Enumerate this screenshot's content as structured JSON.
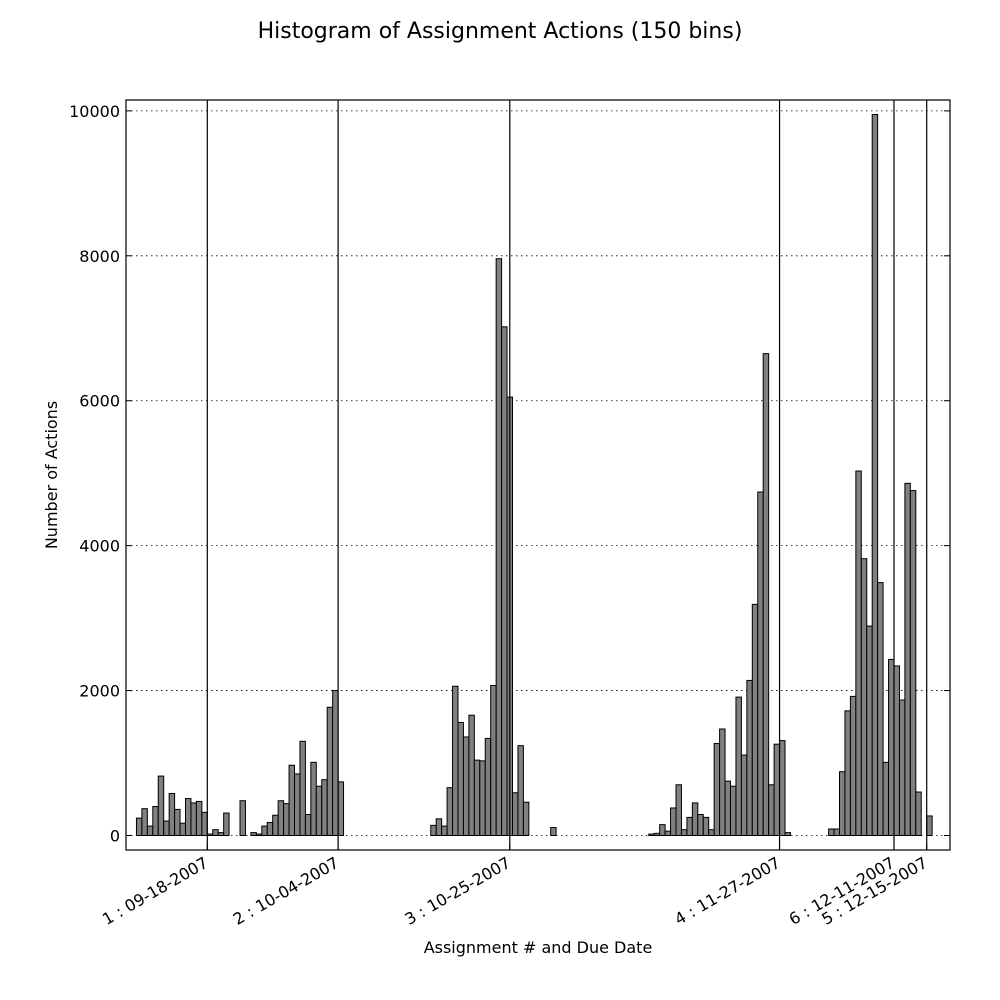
{
  "chart_data": {
    "type": "bar",
    "title": "Histogram of Assignment Actions (150 bins)",
    "xlabel": "Assignment # and Due Date",
    "ylabel": "Number of Actions",
    "ylim": [
      -200,
      10150
    ],
    "yticks": [
      0,
      2000,
      4000,
      6000,
      8000,
      10000
    ],
    "ytick_labels": [
      "0",
      "2000",
      "4000",
      "6000",
      "8000",
      "10000"
    ],
    "grid": "horizontal dotted",
    "bar_color": "#808080",
    "bins": 150,
    "xlim": [
      0,
      150
    ],
    "values": [
      0,
      240,
      370,
      130,
      400,
      820,
      200,
      580,
      360,
      170,
      510,
      450,
      470,
      320,
      20,
      80,
      40,
      310,
      0,
      0,
      480,
      0,
      40,
      20,
      130,
      180,
      280,
      480,
      440,
      970,
      850,
      1300,
      290,
      1010,
      680,
      770,
      1770,
      2000,
      740,
      0,
      0,
      0,
      0,
      0,
      0,
      0,
      0,
      0,
      0,
      0,
      0,
      0,
      0,
      0,
      0,
      140,
      230,
      130,
      660,
      2060,
      1560,
      1360,
      1660,
      1040,
      1030,
      1340,
      2070,
      7960,
      7020,
      6050,
      590,
      1240,
      460,
      0,
      0,
      0,
      0,
      110,
      0,
      0,
      0,
      0,
      0,
      0,
      0,
      0,
      0,
      0,
      0,
      0,
      0,
      0,
      0,
      0,
      0,
      20,
      30,
      150,
      60,
      380,
      700,
      80,
      250,
      450,
      290,
      250,
      80,
      1270,
      1470,
      750,
      680,
      1910,
      1110,
      2140,
      3190,
      4740,
      6650,
      700,
      1260,
      1310,
      40,
      0,
      0,
      0,
      0,
      0,
      0,
      0,
      90,
      90,
      880,
      1720,
      1920,
      5030,
      3820,
      2890,
      9950,
      3490,
      1010,
      2430,
      2340,
      1870,
      4860,
      4760,
      600,
      0,
      270,
      0
    ],
    "due_dates": [
      {
        "label": "1 : 09-18-2007",
        "bin": 14
      },
      {
        "label": "2 : 10-04-2007",
        "bin": 38
      },
      {
        "label": "3 : 10-25-2007",
        "bin": 69.5
      },
      {
        "label": "4 : 11-27-2007",
        "bin": 119
      },
      {
        "label": "6 : 12-11-2007",
        "bin": 140
      },
      {
        "label": "5 : 12-15-2007",
        "bin": 146
      }
    ]
  }
}
